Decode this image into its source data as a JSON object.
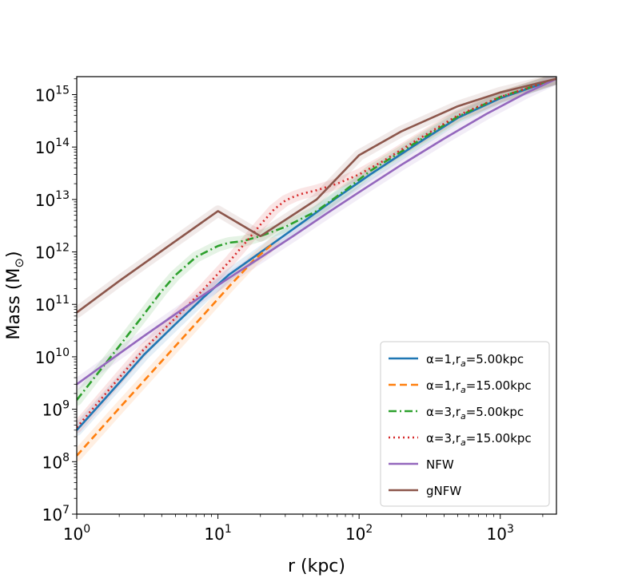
{
  "chart_data": {
    "type": "line",
    "xlabel": "r (kpc)",
    "ylabel": "Mass (M",
    "ylabel_sub": "⊙",
    "x_scale": "log",
    "y_scale": "log",
    "xlim": [
      1,
      2500
    ],
    "ylim": [
      10000000.0,
      2200000000000000.0
    ],
    "x_ticks": [
      {
        "value": 1,
        "base": "10",
        "exp": "0"
      },
      {
        "value": 10,
        "base": "10",
        "exp": "1"
      },
      {
        "value": 100,
        "base": "10",
        "exp": "2"
      },
      {
        "value": 1000,
        "base": "10",
        "exp": "3"
      }
    ],
    "y_ticks": [
      {
        "value": 10000000.0,
        "base": "10",
        "exp": "7"
      },
      {
        "value": 100000000.0,
        "base": "10",
        "exp": "8"
      },
      {
        "value": 1000000000.0,
        "base": "10",
        "exp": "9"
      },
      {
        "value": 10000000000.0,
        "base": "10",
        "exp": "10"
      },
      {
        "value": 100000000000.0,
        "base": "10",
        "exp": "11"
      },
      {
        "value": 1000000000000.0,
        "base": "10",
        "exp": "12"
      },
      {
        "value": 10000000000000.0,
        "base": "10",
        "exp": "13"
      },
      {
        "value": 100000000000000.0,
        "base": "10",
        "exp": "14"
      },
      {
        "value": 1000000000000000.0,
        "base": "10",
        "exp": "15"
      }
    ],
    "grid": false,
    "legend_position": "bottom-right",
    "series": [
      {
        "name": "α=1,r",
        "name_sub": "a",
        "name_rest": "=5.00kpc",
        "color": "#1f77b4",
        "dash": "solid",
        "x": [
          1,
          2,
          3,
          5,
          8,
          12,
          18,
          25,
          40,
          70,
          120,
          250,
          500,
          1000,
          2500
        ],
        "y": [
          400000000.0,
          3200000000.0,
          11000000000.0,
          42000000000.0,
          140000000000.0,
          370000000000.0,
          800000000000.0,
          1500000000000.0,
          3700000000000.0,
          11000000000000.0,
          30000000000000.0,
          110000000000000.0,
          360000000000000.0,
          850000000000000.0,
          2000000000000000.0
        ]
      },
      {
        "name": "α=1,r",
        "name_sub": "a",
        "name_rest": "=15.00kpc",
        "color": "#ff7f0e",
        "dash": "dashed",
        "x": [
          1,
          2,
          3,
          5,
          8,
          12,
          18,
          25
        ],
        "y": [
          130000000.0,
          1050000000.0,
          3500000000.0,
          16000000000.0,
          65000000000.0,
          220000000000.0,
          700000000000.0,
          1500000000000.0
        ]
      },
      {
        "name": "α=3,r",
        "name_sub": "a",
        "name_rest": "=5.00kpc",
        "color": "#2ca02c",
        "dash": "dashdot",
        "x": [
          1,
          1.5,
          2,
          3,
          4,
          5,
          7,
          10,
          12,
          15,
          20,
          30,
          50,
          80,
          120,
          250,
          500,
          1000,
          2500
        ],
        "y": [
          1500000000.0,
          6000000000.0,
          16000000000.0,
          65000000000.0,
          180000000000.0,
          360000000000.0,
          800000000000.0,
          1300000000000.0,
          1500000000000.0,
          1600000000000.0,
          2000000000000.0,
          3000000000000.0,
          6000000000000.0,
          15000000000000.0,
          35000000000000.0,
          120000000000000.0,
          380000000000000.0,
          900000000000000.0,
          2000000000000000.0
        ]
      },
      {
        "name": "α=3,r",
        "name_sub": "a",
        "name_rest": "=15.00kpc",
        "color": "#d62728",
        "dash": "dotted",
        "x": [
          1,
          2,
          3,
          5,
          8,
          12,
          16,
          20,
          25,
          30,
          35,
          40,
          50,
          70,
          100,
          150,
          250,
          500,
          1000,
          2500
        ],
        "y": [
          450000000.0,
          4000000000.0,
          14000000000.0,
          55000000000.0,
          200000000000.0,
          650000000000.0,
          1600000000000.0,
          3300000000000.0,
          6500000000000.0,
          9500000000000.0,
          11500000000000.0,
          13000000000000.0,
          15000000000000.0,
          20000000000000.0,
          30000000000000.0,
          55000000000000.0,
          130000000000000.0,
          400000000000000.0,
          900000000000000.0,
          2000000000000000.0
        ]
      },
      {
        "name": "NFW",
        "color": "#9467bd",
        "dash": "solid",
        "x": [
          1,
          2,
          3,
          5,
          8,
          12,
          20,
          35,
          60,
          100,
          200,
          400,
          800,
          1500,
          2500
        ],
        "y": [
          3000000000.0,
          11500000000.0,
          25000000000.0,
          65000000000.0,
          155000000000.0,
          320000000000.0,
          780000000000.0,
          2100000000000.0,
          5600000000000.0,
          13800000000000.0,
          46000000000000.0,
          145000000000000.0,
          430000000000000.0,
          1050000000000000.0,
          2000000000000000.0
        ]
      },
      {
        "name": "gNFW",
        "color": "#8c564b",
        "dash": "solid",
        "x": [
          1,
          2,
          5,
          10,
          20,
          50,
          100,
          200,
          500,
          1000,
          2500
        ],
        "y": [
          70000000000.0,
          280000000000.0,
          1600000000000.0,
          6000000000000.0,
          2000000000000.0,
          10000000000000.0,
          70000000000000.0,
          200000000000000.0,
          600000000000000.0,
          1100000000000000.0,
          2000000000000000.0
        ]
      }
    ]
  }
}
